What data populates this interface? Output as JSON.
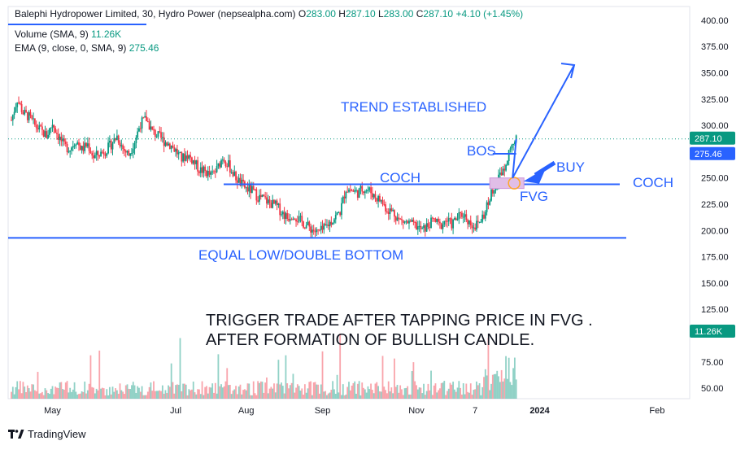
{
  "header": {
    "symbol": "Balephi Hydropower Limited",
    "interval": "30",
    "exchange": "Hydro Power (nepsealpha.com)",
    "open_label": "O",
    "open": "283.00",
    "high_label": "H",
    "high": "287.10",
    "low_label": "L",
    "low": "283.00",
    "close_label": "C",
    "close": "287.10",
    "change": "+4.10 (+1.45%)"
  },
  "indicators": {
    "volume_label": "Volume (SMA, 9)",
    "volume_value": "11.26K",
    "ema_label": "EMA (9, close, 0, SMA, 9)",
    "ema_value": "275.46"
  },
  "brand": "TradingView",
  "colors": {
    "up": "#089981",
    "down": "#f23645",
    "annotation": "#2962ff",
    "fvg_fill": "#e1bee7",
    "last_price": "#089981",
    "ema_badge": "#2962ff"
  },
  "chart_data": {
    "type": "candlestick",
    "price_axis": {
      "ylim": [
        40,
        410
      ],
      "ticks": [
        "400.00",
        "375.00",
        "350.00",
        "325.00",
        "300.00",
        "250.00",
        "225.00",
        "200.00",
        "175.00",
        "150.00",
        "125.00",
        "75.00",
        "50.00"
      ],
      "tick_values": [
        400,
        375,
        350,
        325,
        300,
        250,
        225,
        200,
        175,
        150,
        125,
        75,
        50
      ]
    },
    "time_axis": {
      "labels": [
        "May",
        "Jul",
        "Aug",
        "Sep",
        "Nov",
        "7",
        "2024",
        "Feb"
      ],
      "label_index": [
        7,
        28,
        40,
        53,
        69,
        79,
        90,
        110
      ]
    },
    "price_badges": [
      {
        "value": 287.1,
        "label": "287.10",
        "color": "#089981"
      },
      {
        "value": 275.46,
        "label": "275.46",
        "color": "#2962ff"
      }
    ],
    "volume_badge": {
      "label": "11.26K"
    },
    "candles_x_count": 115,
    "price_path": [
      [
        0,
        305
      ],
      [
        1,
        325
      ],
      [
        2,
        312
      ],
      [
        3,
        308
      ],
      [
        4,
        300
      ],
      [
        5,
        295
      ],
      [
        6,
        290
      ],
      [
        7,
        302
      ],
      [
        8,
        290
      ],
      [
        9,
        280
      ],
      [
        10,
        278
      ],
      [
        11,
        286
      ],
      [
        12,
        277
      ],
      [
        13,
        282
      ],
      [
        14,
        270
      ],
      [
        15,
        273
      ],
      [
        16,
        276
      ],
      [
        17,
        282
      ],
      [
        18,
        290
      ],
      [
        19,
        278
      ],
      [
        20,
        272
      ],
      [
        21,
        285
      ],
      [
        22,
        302
      ],
      [
        23,
        306
      ],
      [
        24,
        294
      ],
      [
        25,
        290
      ],
      [
        26,
        285
      ],
      [
        27,
        282
      ],
      [
        28,
        276
      ],
      [
        29,
        268
      ],
      [
        30,
        272
      ],
      [
        31,
        266
      ],
      [
        32,
        258
      ],
      [
        33,
        256
      ],
      [
        34,
        252
      ],
      [
        35,
        258
      ],
      [
        36,
        270
      ],
      [
        37,
        262
      ],
      [
        38,
        252
      ],
      [
        39,
        245
      ],
      [
        40,
        240
      ],
      [
        41,
        238
      ],
      [
        42,
        232
      ],
      [
        43,
        230
      ],
      [
        44,
        226
      ],
      [
        45,
        224
      ],
      [
        46,
        218
      ],
      [
        47,
        212
      ],
      [
        48,
        216
      ],
      [
        49,
        210
      ],
      [
        50,
        206
      ],
      [
        51,
        202
      ],
      [
        52,
        198
      ],
      [
        53,
        200
      ],
      [
        54,
        206
      ],
      [
        55,
        212
      ],
      [
        56,
        218
      ],
      [
        57,
        240
      ],
      [
        58,
        238
      ],
      [
        59,
        236
      ],
      [
        60,
        240
      ],
      [
        61,
        238
      ],
      [
        62,
        232
      ],
      [
        63,
        228
      ],
      [
        64,
        220
      ],
      [
        65,
        218
      ],
      [
        66,
        210
      ],
      [
        67,
        208
      ],
      [
        68,
        206
      ],
      [
        69,
        204
      ],
      [
        70,
        200
      ],
      [
        71,
        205
      ],
      [
        72,
        210
      ],
      [
        73,
        204
      ],
      [
        74,
        210
      ],
      [
        75,
        206
      ],
      [
        76,
        212
      ],
      [
        77,
        216
      ],
      [
        78,
        208
      ],
      [
        79,
        204
      ],
      [
        80,
        210
      ],
      [
        81,
        222
      ],
      [
        82,
        240
      ],
      [
        83,
        250
      ],
      [
        84,
        262
      ],
      [
        85,
        280
      ],
      [
        86,
        287
      ]
    ],
    "annotations": {
      "trend": "TREND ESTABLISHED",
      "bos": "BOS",
      "buy": "BUY",
      "coch_mid": "COCH",
      "coch_right": "COCH",
      "fvg": "FVG",
      "equal_low": "EQUAL LOW/DOUBLE BOTTOM",
      "trigger_line1": "TRIGGER TRADE AFTER TAPPING PRICE IN FVG .",
      "trigger_line2": "AFTER  FORMATION OF BULLISH CANDLE."
    },
    "levels": {
      "coch_level": 244,
      "double_bottom_level": 193,
      "bos_level": 273,
      "fvg_top": 250,
      "fvg_bottom": 240
    }
  }
}
